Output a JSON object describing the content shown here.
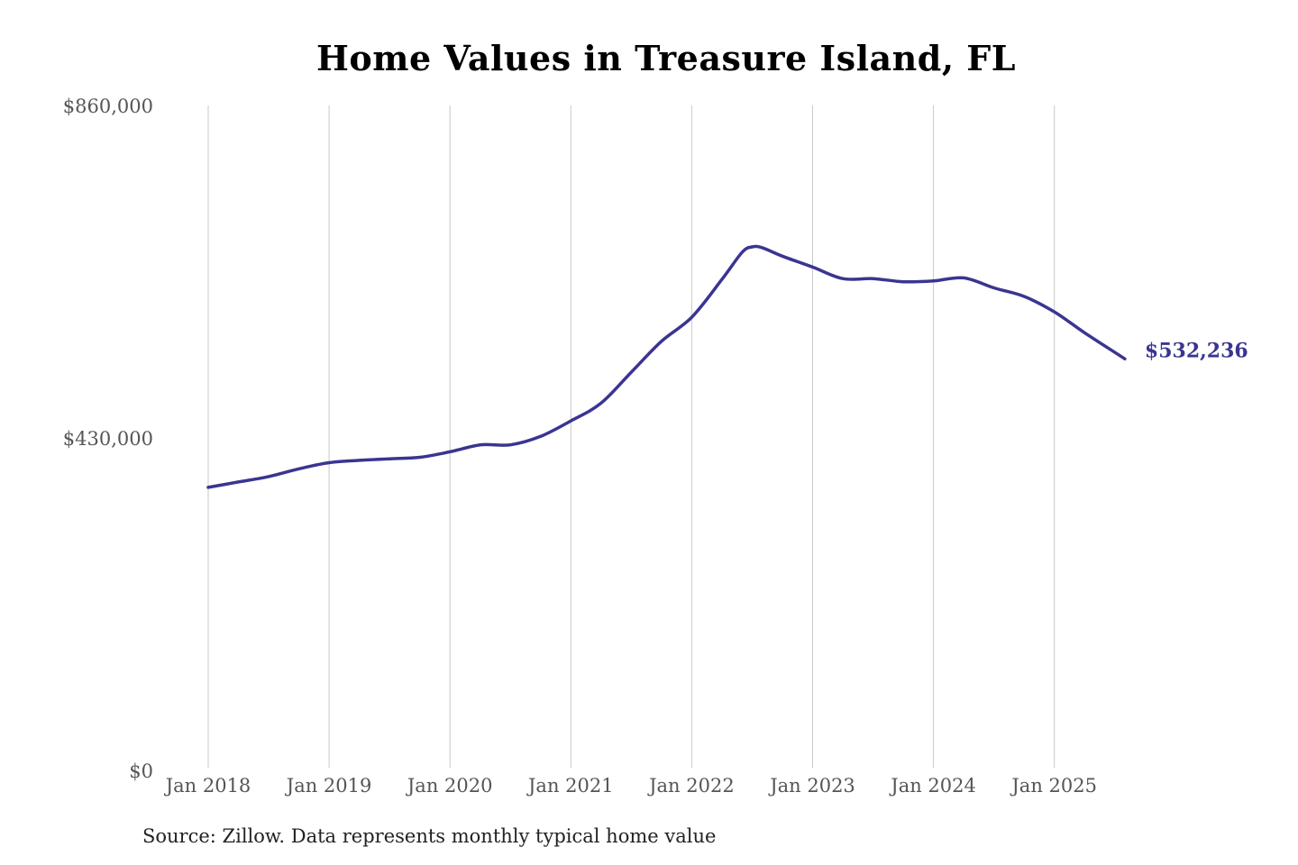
{
  "chart_data": {
    "type": "line",
    "title": "Home Values in Treasure Island, FL",
    "xlabel": "",
    "ylabel": "",
    "ylim": [
      0,
      860000
    ],
    "y_ticks": [
      "$0",
      "$430,000",
      "$860,000"
    ],
    "y_tick_values": [
      0,
      430000,
      860000
    ],
    "x_ticks": [
      "Jan 2018",
      "Jan 2019",
      "Jan 2020",
      "Jan 2021",
      "Jan 2022",
      "Jan 2023",
      "Jan 2024",
      "Jan 2025"
    ],
    "x_tick_values": [
      "2018-01",
      "2019-01",
      "2020-01",
      "2021-01",
      "2022-01",
      "2023-01",
      "2024-01",
      "2025-01"
    ],
    "xlim": [
      "2018-01",
      "2025-08"
    ],
    "grid": "vertical",
    "line_color": "#3a3591",
    "series": [
      {
        "x": [
          "2018-01",
          "2018-04",
          "2018-07",
          "2018-10",
          "2019-01",
          "2019-04",
          "2019-07",
          "2019-10",
          "2020-01",
          "2020-04",
          "2020-07",
          "2020-10",
          "2021-01",
          "2021-04",
          "2021-07",
          "2021-10",
          "2022-01",
          "2022-04",
          "2022-06",
          "2022-07",
          "2022-08",
          "2022-10",
          "2023-01",
          "2023-04",
          "2023-07",
          "2023-10",
          "2024-01",
          "2024-04",
          "2024-07",
          "2024-10",
          "2025-01",
          "2025-04",
          "2025-08"
        ],
        "y": [
          366000,
          373000,
          380000,
          390000,
          398000,
          401000,
          403000,
          405000,
          412000,
          421000,
          421000,
          432000,
          452000,
          475000,
          515000,
          555000,
          586000,
          635000,
          670000,
          677000,
          676000,
          665000,
          651000,
          636000,
          636000,
          632000,
          633000,
          637000,
          624000,
          613000,
          593000,
          566000,
          532236
        ]
      }
    ],
    "end_label": "$532,236"
  },
  "source_note": "Source: Zillow. Data represents monthly typical home value"
}
